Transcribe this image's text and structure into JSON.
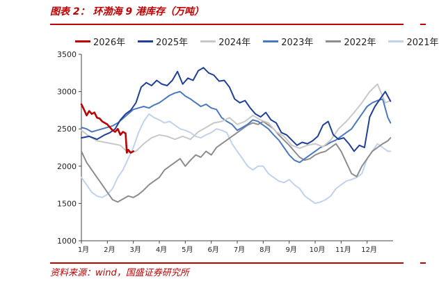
{
  "figure": {
    "title": "图表 2：  环渤海 9 港库存（万吨）",
    "source": "资料来源：wind，国盛证券研究所"
  },
  "chart_data": {
    "type": "line",
    "title": "环渤海 9 港库存（万吨）",
    "xlabel": "",
    "ylabel": "",
    "ylim": [
      1000,
      3500
    ],
    "yticks": [
      1000,
      1500,
      2000,
      2500,
      3000,
      3500
    ],
    "xlim": [
      0,
      12
    ],
    "xtick_labels": [
      "1月",
      "2月",
      "3月",
      "4月",
      "5月",
      "6月",
      "7月",
      "8月",
      "9月",
      "10月",
      "11月",
      "12月"
    ],
    "grid": false,
    "legend_position": "top",
    "series": [
      {
        "name": "2026年",
        "color": "#c00000",
        "width": 2.6,
        "x": [
          0,
          0.1,
          0.2,
          0.3,
          0.4,
          0.5,
          0.6,
          0.7,
          0.8,
          0.9,
          1.0,
          1.1,
          1.2,
          1.3,
          1.4,
          1.5,
          1.6,
          1.7,
          1.75,
          1.8,
          1.9,
          2.0
        ],
        "values": [
          2830,
          2760,
          2680,
          2740,
          2700,
          2720,
          2650,
          2640,
          2600,
          2580,
          2560,
          2520,
          2480,
          2460,
          2500,
          2420,
          2460,
          2440,
          2180,
          2220,
          2180,
          2200
        ]
      },
      {
        "name": "2025年",
        "color": "#1f3f9a",
        "width": 2.0,
        "x": [
          0,
          0.3,
          0.6,
          0.9,
          1.1,
          1.3,
          1.5,
          1.7,
          1.9,
          2.1,
          2.3,
          2.5,
          2.7,
          2.9,
          3.1,
          3.3,
          3.5,
          3.7,
          3.9,
          4.1,
          4.3,
          4.5,
          4.7,
          4.9,
          5.1,
          5.3,
          5.5,
          5.7,
          5.9,
          6.1,
          6.3,
          6.5,
          6.7,
          6.9,
          7.1,
          7.3,
          7.5,
          7.7,
          7.9,
          8.1,
          8.3,
          8.5,
          8.7,
          8.9,
          9.1,
          9.3,
          9.5,
          9.7,
          9.9,
          10.1,
          10.3,
          10.5,
          10.7,
          10.9,
          11.1,
          11.3,
          11.5,
          11.7,
          11.9
        ],
        "values": [
          2380,
          2400,
          2360,
          2420,
          2450,
          2500,
          2620,
          2700,
          2750,
          2850,
          3060,
          3120,
          3080,
          3150,
          3100,
          3080,
          3150,
          3270,
          3100,
          3180,
          3150,
          3280,
          3320,
          3250,
          3220,
          3140,
          3150,
          3060,
          2900,
          2850,
          2880,
          2780,
          2700,
          2660,
          2720,
          2620,
          2580,
          2450,
          2420,
          2350,
          2280,
          2320,
          2300,
          2340,
          2400,
          2550,
          2600,
          2420,
          2360,
          2380,
          2300,
          2200,
          2280,
          2250,
          2660,
          2800,
          2900,
          3000,
          2870
        ]
      },
      {
        "name": "2024年",
        "color": "#c8c8c8",
        "width": 2.0,
        "x": [
          0,
          0.3,
          0.6,
          0.9,
          1.2,
          1.5,
          1.8,
          2.1,
          2.4,
          2.7,
          3.0,
          3.3,
          3.6,
          3.9,
          4.2,
          4.5,
          4.8,
          5.1,
          5.4,
          5.7,
          6.0,
          6.3,
          6.6,
          6.9,
          7.2,
          7.5,
          7.8,
          8.1,
          8.4,
          8.7,
          9.0,
          9.3,
          9.6,
          9.9,
          10.2,
          10.5,
          10.8,
          11.1,
          11.4,
          11.7,
          11.9
        ],
        "values": [
          2480,
          2400,
          2340,
          2320,
          2300,
          2280,
          2180,
          2200,
          2300,
          2380,
          2420,
          2400,
          2360,
          2400,
          2360,
          2460,
          2520,
          2580,
          2600,
          2650,
          2560,
          2600,
          2680,
          2620,
          2580,
          2460,
          2400,
          2280,
          2240,
          2280,
          2300,
          2260,
          2350,
          2500,
          2600,
          2720,
          2850,
          3000,
          3100,
          2850,
          2880
        ]
      },
      {
        "name": "2023年",
        "color": "#4a78c0",
        "width": 2.0,
        "x": [
          0,
          0.2,
          0.4,
          0.6,
          0.8,
          1.0,
          1.2,
          1.4,
          1.6,
          1.8,
          2.0,
          2.2,
          2.4,
          2.6,
          2.8,
          3.0,
          3.2,
          3.4,
          3.6,
          3.8,
          4.0,
          4.2,
          4.4,
          4.6,
          4.8,
          5.0,
          5.2,
          5.4,
          5.6,
          5.8,
          6.0,
          6.2,
          6.4,
          6.6,
          6.8,
          7.0,
          7.2,
          7.4,
          7.6,
          7.8,
          8.0,
          8.2,
          8.4,
          8.6,
          8.8,
          9.0,
          9.2,
          9.4,
          9.6,
          9.8,
          10.0,
          10.2,
          10.4,
          10.6,
          10.8,
          11.0,
          11.2,
          11.4,
          11.6,
          11.8,
          11.9
        ],
        "values": [
          2520,
          2500,
          2460,
          2480,
          2500,
          2520,
          2540,
          2580,
          2640,
          2700,
          2760,
          2780,
          2800,
          2780,
          2820,
          2850,
          2900,
          2950,
          2980,
          3000,
          2940,
          2900,
          2850,
          2800,
          2830,
          2780,
          2760,
          2650,
          2600,
          2560,
          2480,
          2520,
          2560,
          2620,
          2600,
          2550,
          2500,
          2420,
          2350,
          2250,
          2150,
          2080,
          2050,
          2100,
          2150,
          2200,
          2250,
          2280,
          2320,
          2350,
          2400,
          2450,
          2500,
          2600,
          2700,
          2800,
          2850,
          2880,
          2900,
          2650,
          2580
        ]
      },
      {
        "name": "2022年",
        "color": "#8c8c8c",
        "width": 2.0,
        "x": [
          0,
          0.2,
          0.4,
          0.6,
          0.8,
          1.0,
          1.2,
          1.4,
          1.6,
          1.8,
          2.0,
          2.2,
          2.4,
          2.6,
          2.8,
          3.0,
          3.2,
          3.4,
          3.6,
          3.8,
          4.0,
          4.2,
          4.4,
          4.6,
          4.8,
          5.0,
          5.2,
          5.4,
          5.6,
          5.8,
          6.0,
          6.2,
          6.4,
          6.6,
          6.8,
          7.0,
          7.2,
          7.4,
          7.6,
          7.8,
          8.0,
          8.2,
          8.4,
          8.6,
          8.8,
          9.0,
          9.2,
          9.4,
          9.6,
          9.8,
          10.0,
          10.2,
          10.4,
          10.6,
          10.8,
          11.0,
          11.2,
          11.4,
          11.6,
          11.8,
          11.9
        ],
        "values": [
          2200,
          2050,
          1950,
          1850,
          1750,
          1650,
          1550,
          1520,
          1560,
          1600,
          1580,
          1620,
          1680,
          1750,
          1800,
          1850,
          1950,
          2000,
          2050,
          2100,
          2000,
          2080,
          2150,
          2120,
          2200,
          2150,
          2250,
          2300,
          2350,
          2400,
          2450,
          2500,
          2550,
          2580,
          2560,
          2600,
          2550,
          2500,
          2420,
          2350,
          2280,
          2200,
          2120,
          2080,
          2100,
          2150,
          2180,
          2200,
          2250,
          2300,
          2200,
          2050,
          1900,
          1860,
          2000,
          2100,
          2200,
          2250,
          2300,
          2340,
          2380
        ]
      },
      {
        "name": "2021年",
        "color": "#c0d2ec",
        "width": 2.0,
        "x": [
          0,
          0.2,
          0.4,
          0.6,
          0.8,
          1.0,
          1.2,
          1.4,
          1.6,
          1.8,
          2.0,
          2.2,
          2.4,
          2.6,
          2.8,
          3.0,
          3.2,
          3.4,
          3.6,
          3.8,
          4.0,
          4.2,
          4.4,
          4.6,
          4.8,
          5.0,
          5.2,
          5.4,
          5.6,
          5.8,
          6.0,
          6.2,
          6.4,
          6.6,
          6.8,
          7.0,
          7.2,
          7.4,
          7.6,
          7.8,
          8.0,
          8.2,
          8.4,
          8.6,
          8.8,
          9.0,
          9.2,
          9.4,
          9.6,
          9.8,
          10.0,
          10.2,
          10.4,
          10.6,
          10.8,
          11.0,
          11.2,
          11.4,
          11.6,
          11.8,
          11.9
        ],
        "values": [
          1850,
          1750,
          1650,
          1600,
          1580,
          1620,
          1700,
          1850,
          1950,
          2100,
          2250,
          2450,
          2600,
          2700,
          2650,
          2620,
          2580,
          2600,
          2550,
          2500,
          2480,
          2450,
          2400,
          2380,
          2420,
          2450,
          2500,
          2480,
          2450,
          2300,
          2200,
          2100,
          2000,
          1950,
          2000,
          2000,
          1900,
          1850,
          1800,
          1780,
          1820,
          1750,
          1700,
          1600,
          1550,
          1500,
          1520,
          1550,
          1600,
          1700,
          1750,
          1800,
          1820,
          1850,
          1900,
          2100,
          2200,
          2300,
          2250,
          2200,
          2200
        ]
      }
    ]
  }
}
